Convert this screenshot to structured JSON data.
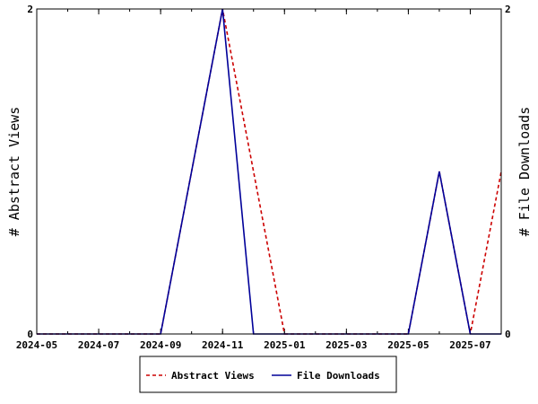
{
  "chart_data": {
    "type": "line",
    "x_tick_labels": [
      "2024-05",
      "2024-07",
      "2024-09",
      "2024-11",
      "2025-01",
      "2025-03",
      "2025-05",
      "2025-07"
    ],
    "ylabel_left": "# Abstract Views",
    "ylabel_right": "# File Downloads",
    "y_left_ticks": [
      "0",
      "2"
    ],
    "y_right_ticks": [
      "0",
      "2"
    ],
    "ylim": [
      0,
      2
    ],
    "xlim": [
      "2024-05",
      "2025-08"
    ],
    "legend_position": "bottom",
    "series": [
      {
        "name": "Abstract Views",
        "color": "#cc0000",
        "style": "dashed",
        "x": [
          "2024-05",
          "2024-06",
          "2024-07",
          "2024-08",
          "2024-09",
          "2024-10",
          "2024-11",
          "2024-12",
          "2025-01",
          "2025-02",
          "2025-03",
          "2025-04",
          "2025-05",
          "2025-06",
          "2025-07",
          "2025-08"
        ],
        "values": [
          0,
          0,
          0,
          0,
          0,
          1,
          2,
          1,
          0,
          0,
          0,
          0,
          0,
          1,
          0,
          1
        ]
      },
      {
        "name": "File Downloads",
        "color": "#000099",
        "style": "solid",
        "x": [
          "2024-05",
          "2024-06",
          "2024-07",
          "2024-08",
          "2024-09",
          "2024-10",
          "2024-11",
          "2024-12",
          "2025-01",
          "2025-02",
          "2025-03",
          "2025-04",
          "2025-05",
          "2025-06",
          "2025-07",
          "2025-08"
        ],
        "values": [
          0,
          0,
          0,
          0,
          0,
          1,
          2,
          0,
          0,
          0,
          0,
          0,
          0,
          1,
          0,
          0
        ]
      }
    ]
  }
}
